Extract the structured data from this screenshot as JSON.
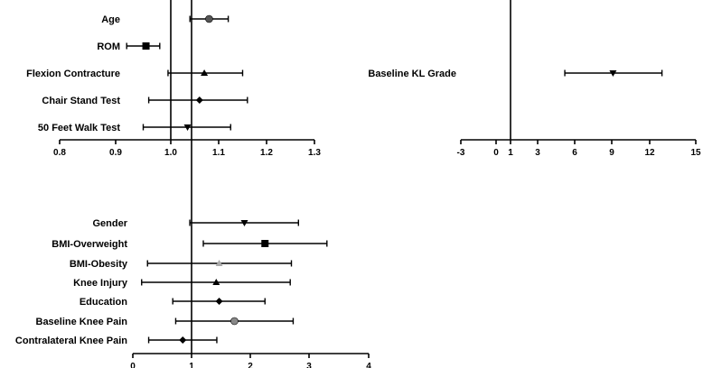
{
  "chart_data": [
    {
      "type": "scatter",
      "title": "",
      "xlabel": "",
      "ylabel": "",
      "xlim": [
        0.8,
        1.3
      ],
      "xticks": [
        "0.8",
        "0.9",
        "1.0",
        "1.1",
        "1.2",
        "1.3"
      ],
      "reference_line": 1.0,
      "series": [
        {
          "label": "Age",
          "estimate": 1.08,
          "lower": 1.04,
          "upper": 1.12,
          "marker": "circle",
          "color": "#555555"
        },
        {
          "label": "ROM",
          "estimate": 0.955,
          "lower": 0.92,
          "upper": 0.98,
          "marker": "square",
          "color": "#000000"
        },
        {
          "label": "Flexion Contracture",
          "estimate": 1.07,
          "lower": 0.995,
          "upper": 1.15,
          "marker": "triangle-up",
          "color": "#000000"
        },
        {
          "label": "Chair Stand Test",
          "estimate": 1.06,
          "lower": 0.96,
          "upper": 1.16,
          "marker": "diamond",
          "color": "#000000"
        },
        {
          "label": "50 Feet Walk Test",
          "estimate": 1.035,
          "lower": 0.95,
          "upper": 1.125,
          "marker": "triangle-down",
          "color": "#000000"
        }
      ]
    },
    {
      "type": "scatter",
      "title": "",
      "xlabel": "",
      "ylabel": "",
      "xlim": [
        -3,
        15
      ],
      "xticks": [
        "-3",
        "0",
        "1",
        "3",
        "6",
        "9",
        "12",
        "15"
      ],
      "reference_line": 1,
      "series": [
        {
          "label": "Baseline KL Grade",
          "estimate": 9.1,
          "lower": 5.2,
          "upper": 12.8,
          "marker": "triangle-down",
          "color": "#000000"
        }
      ]
    },
    {
      "type": "scatter",
      "title": "",
      "xlabel": "",
      "ylabel": "",
      "xlim": [
        0,
        4
      ],
      "xticks": [
        "0",
        "1",
        "2",
        "3",
        "4"
      ],
      "reference_line": 1,
      "series": [
        {
          "label": "Gender",
          "estimate": 1.9,
          "lower": 0.97,
          "upper": 2.82,
          "marker": "triangle-down",
          "color": "#000000"
        },
        {
          "label": "BMI-Overweight",
          "estimate": 2.25,
          "lower": 1.2,
          "upper": 3.3,
          "marker": "square",
          "color": "#000000"
        },
        {
          "label": "BMI-Obesity",
          "estimate": 1.47,
          "lower": 0.25,
          "upper": 2.7,
          "marker": "triangle-up",
          "color": "#aaaaaa"
        },
        {
          "label": "Knee Injury",
          "estimate": 1.42,
          "lower": 0.15,
          "upper": 2.68,
          "marker": "triangle-up",
          "color": "#000000"
        },
        {
          "label": "Education",
          "estimate": 1.47,
          "lower": 0.68,
          "upper": 2.25,
          "marker": "diamond",
          "color": "#000000"
        },
        {
          "label": "Baseline Knee Pain",
          "estimate": 1.73,
          "lower": 0.73,
          "upper": 2.73,
          "marker": "circle",
          "color": "#888888"
        },
        {
          "label": "Contralateral Knee Pain",
          "estimate": 0.85,
          "lower": 0.27,
          "upper": 1.43,
          "marker": "diamond",
          "color": "#000000"
        }
      ]
    }
  ]
}
